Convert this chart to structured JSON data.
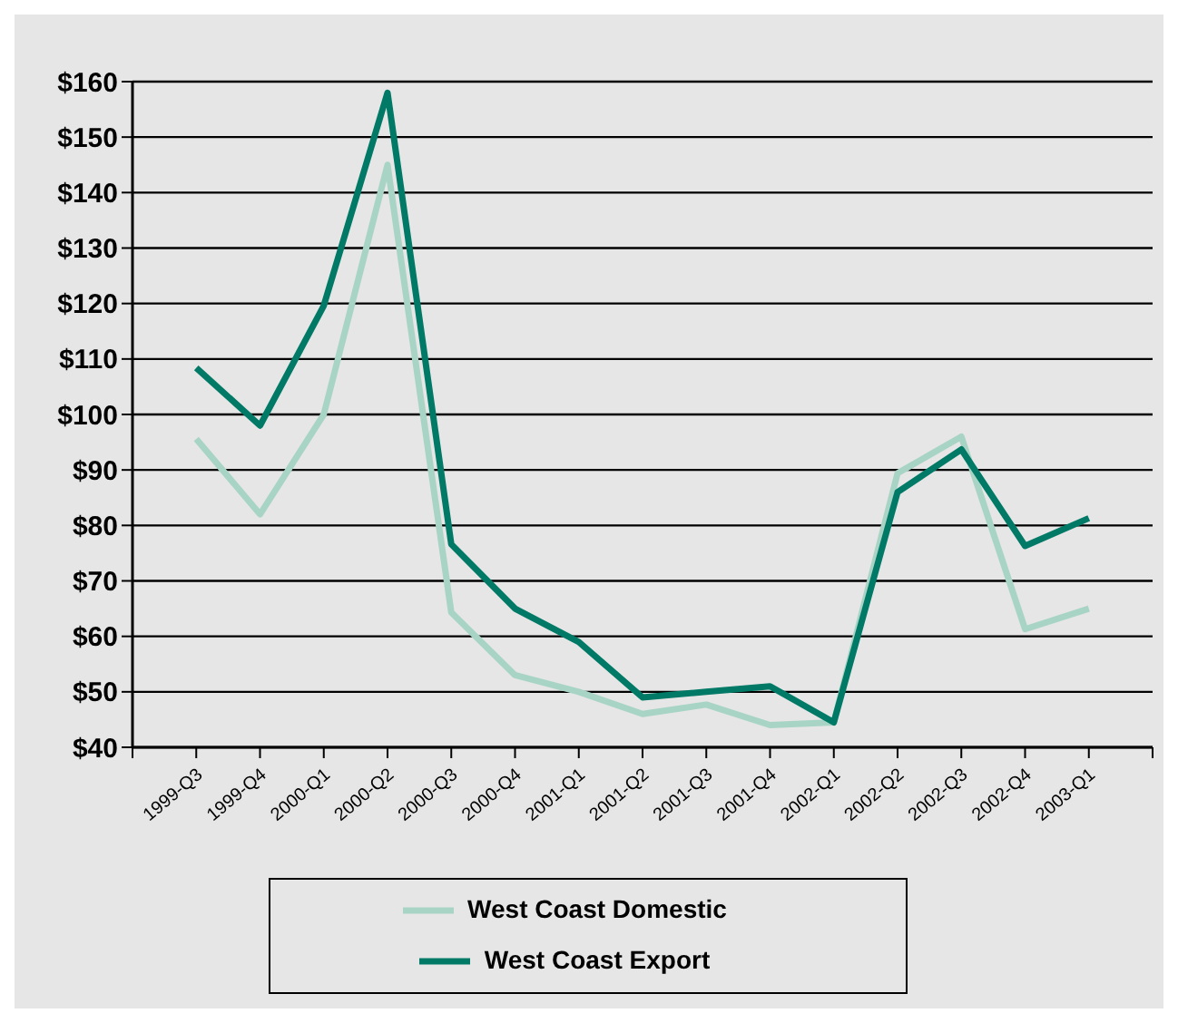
{
  "chart_data": {
    "type": "line",
    "categories": [
      null,
      "1999-Q3",
      "1999-Q4",
      "2000-Q1",
      "2000-Q2",
      "2000-Q3",
      "2000-Q4",
      "2001-Q1",
      "2001-Q2",
      "2001-Q3",
      "2001-Q4",
      "2002-Q1",
      "2002-Q2",
      "2002-Q3",
      "2002-Q4",
      "2003-Q1",
      null
    ],
    "series": [
      {
        "name": "West Coast Domestic",
        "color": "#a8d4c6",
        "values": [
          null,
          95.6,
          82,
          100,
          145,
          64.3,
          53,
          50,
          46,
          47.7,
          44,
          44.5,
          89.4,
          96,
          61.3,
          65,
          null
        ]
      },
      {
        "name": "West Coast Export",
        "color": "#007a66",
        "values": [
          null,
          108.4,
          98,
          119.6,
          158,
          76.6,
          65,
          59,
          49,
          50,
          51,
          44.5,
          86,
          93.7,
          76.3,
          81.3,
          null
        ]
      }
    ],
    "ylim": [
      40,
      160
    ],
    "yticks": [
      {
        "value": 40,
        "label": "$40"
      },
      {
        "value": 50,
        "label": "$50"
      },
      {
        "value": 60,
        "label": "$60"
      },
      {
        "value": 70,
        "label": "$70"
      },
      {
        "value": 80,
        "label": "$80"
      },
      {
        "value": 90,
        "label": "$90"
      },
      {
        "value": 100,
        "label": "$100"
      },
      {
        "value": 110,
        "label": "$110"
      },
      {
        "value": 120,
        "label": "$120"
      },
      {
        "value": 130,
        "label": "$130"
      },
      {
        "value": 140,
        "label": "$140"
      },
      {
        "value": 150,
        "label": "$150"
      },
      {
        "value": 160,
        "label": "$160"
      }
    ],
    "grid": "y",
    "legend": "bottom",
    "marker": "none",
    "line_style": "solid"
  }
}
